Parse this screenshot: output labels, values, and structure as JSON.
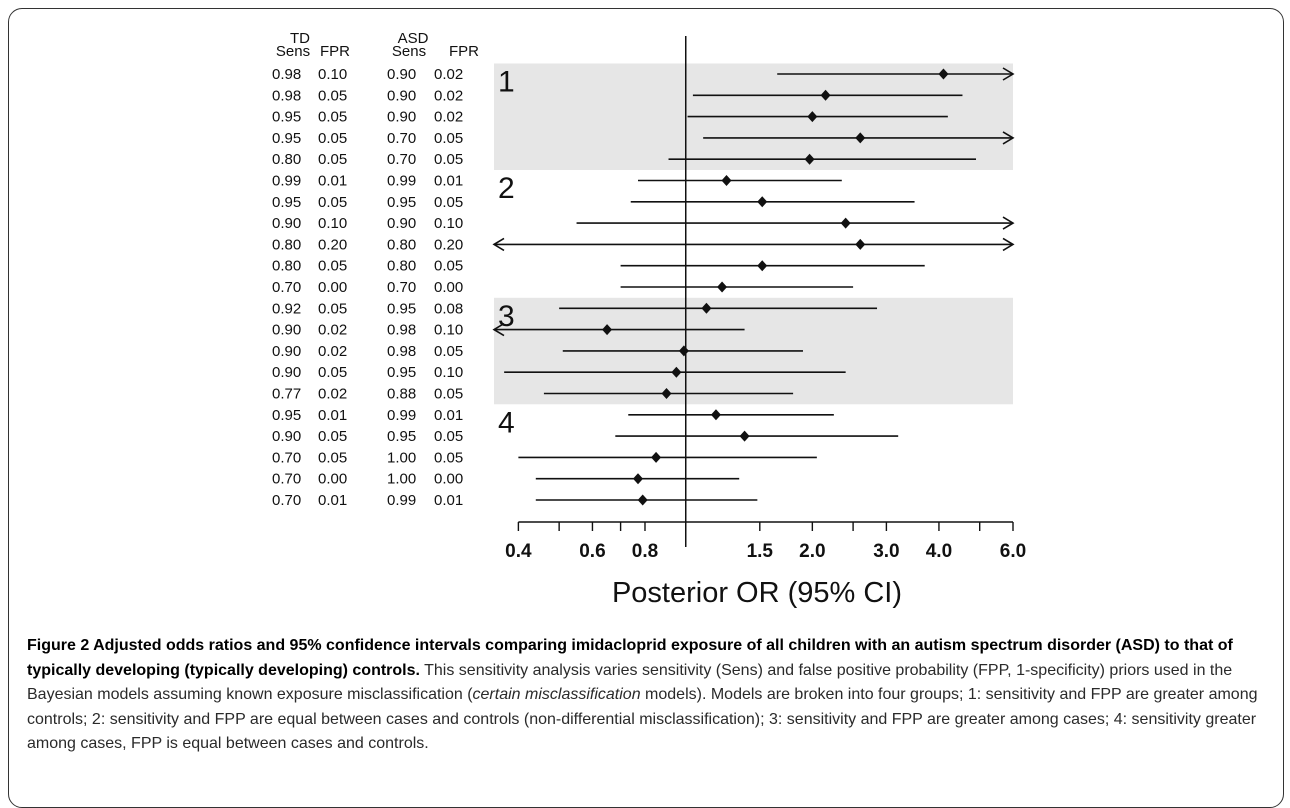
{
  "chart_data": {
    "type": "forest",
    "column_headers": {
      "td_group": "TD",
      "asd_group": "ASD",
      "td_sens": "Sens",
      "td_fpr": "FPR",
      "asd_sens": "Sens",
      "asd_fpr": "FPR"
    },
    "groups": [
      {
        "label": "1",
        "rows": [
          0,
          4
        ],
        "shaded": true
      },
      {
        "label": "2",
        "rows": [
          5,
          10
        ],
        "shaded": false
      },
      {
        "label": "3",
        "rows": [
          11,
          15
        ],
        "shaded": true
      },
      {
        "label": "4",
        "rows": [
          16,
          20
        ],
        "shaded": false
      }
    ],
    "rows": [
      {
        "td_sens": "0.98",
        "td_fpr": "0.10",
        "asd_sens": "0.90",
        "asd_fpr": "0.02",
        "or": 4.1,
        "lo": 1.65,
        "hi": 6.0,
        "arrow_left": false,
        "arrow_right": true
      },
      {
        "td_sens": "0.98",
        "td_fpr": "0.05",
        "asd_sens": "0.90",
        "asd_fpr": "0.02",
        "or": 2.15,
        "lo": 1.04,
        "hi": 4.55,
        "arrow_left": false,
        "arrow_right": false
      },
      {
        "td_sens": "0.95",
        "td_fpr": "0.05",
        "asd_sens": "0.90",
        "asd_fpr": "0.02",
        "or": 2.0,
        "lo": 1.01,
        "hi": 4.2,
        "arrow_left": false,
        "arrow_right": false
      },
      {
        "td_sens": "0.95",
        "td_fpr": "0.05",
        "asd_sens": "0.70",
        "asd_fpr": "0.05",
        "or": 2.6,
        "lo": 1.1,
        "hi": 6.0,
        "arrow_left": false,
        "arrow_right": true
      },
      {
        "td_sens": "0.80",
        "td_fpr": "0.05",
        "asd_sens": "0.70",
        "asd_fpr": "0.05",
        "or": 1.97,
        "lo": 0.91,
        "hi": 4.9,
        "arrow_left": false,
        "arrow_right": false
      },
      {
        "td_sens": "0.99",
        "td_fpr": "0.01",
        "asd_sens": "0.99",
        "asd_fpr": "0.01",
        "or": 1.25,
        "lo": 0.77,
        "hi": 2.35,
        "arrow_left": false,
        "arrow_right": false
      },
      {
        "td_sens": "0.95",
        "td_fpr": "0.05",
        "asd_sens": "0.95",
        "asd_fpr": "0.05",
        "or": 1.52,
        "lo": 0.74,
        "hi": 3.5,
        "arrow_left": false,
        "arrow_right": false
      },
      {
        "td_sens": "0.90",
        "td_fpr": "0.10",
        "asd_sens": "0.90",
        "asd_fpr": "0.10",
        "or": 2.4,
        "lo": 0.55,
        "hi": 6.0,
        "arrow_left": false,
        "arrow_right": true
      },
      {
        "td_sens": "0.80",
        "td_fpr": "0.20",
        "asd_sens": "0.80",
        "asd_fpr": "0.20",
        "or": 2.6,
        "lo": 0.35,
        "hi": 6.0,
        "arrow_left": true,
        "arrow_right": true
      },
      {
        "td_sens": "0.80",
        "td_fpr": "0.05",
        "asd_sens": "0.80",
        "asd_fpr": "0.05",
        "or": 1.52,
        "lo": 0.7,
        "hi": 3.7,
        "arrow_left": false,
        "arrow_right": false
      },
      {
        "td_sens": "0.70",
        "td_fpr": "0.00",
        "asd_sens": "0.70",
        "asd_fpr": "0.00",
        "or": 1.22,
        "lo": 0.7,
        "hi": 2.5,
        "arrow_left": false,
        "arrow_right": false
      },
      {
        "td_sens": "0.92",
        "td_fpr": "0.05",
        "asd_sens": "0.95",
        "asd_fpr": "0.08",
        "or": 1.12,
        "lo": 0.5,
        "hi": 2.85,
        "arrow_left": false,
        "arrow_right": false
      },
      {
        "td_sens": "0.90",
        "td_fpr": "0.02",
        "asd_sens": "0.98",
        "asd_fpr": "0.10",
        "or": 0.65,
        "lo": 0.35,
        "hi": 1.38,
        "arrow_left": true,
        "arrow_right": false
      },
      {
        "td_sens": "0.90",
        "td_fpr": "0.02",
        "asd_sens": "0.98",
        "asd_fpr": "0.05",
        "or": 0.99,
        "lo": 0.51,
        "hi": 1.9,
        "arrow_left": false,
        "arrow_right": false
      },
      {
        "td_sens": "0.90",
        "td_fpr": "0.05",
        "asd_sens": "0.95",
        "asd_fpr": "0.10",
        "or": 0.95,
        "lo": 0.37,
        "hi": 2.4,
        "arrow_left": false,
        "arrow_right": false
      },
      {
        "td_sens": "0.77",
        "td_fpr": "0.02",
        "asd_sens": "0.88",
        "asd_fpr": "0.05",
        "or": 0.9,
        "lo": 0.46,
        "hi": 1.8,
        "arrow_left": false,
        "arrow_right": false
      },
      {
        "td_sens": "0.95",
        "td_fpr": "0.01",
        "asd_sens": "0.99",
        "asd_fpr": "0.01",
        "or": 1.18,
        "lo": 0.73,
        "hi": 2.25,
        "arrow_left": false,
        "arrow_right": false
      },
      {
        "td_sens": "0.90",
        "td_fpr": "0.05",
        "asd_sens": "0.95",
        "asd_fpr": "0.05",
        "or": 1.38,
        "lo": 0.68,
        "hi": 3.2,
        "arrow_left": false,
        "arrow_right": false
      },
      {
        "td_sens": "0.70",
        "td_fpr": "0.05",
        "asd_sens": "1.00",
        "asd_fpr": "0.05",
        "or": 0.85,
        "lo": 0.4,
        "hi": 2.05,
        "arrow_left": false,
        "arrow_right": false
      },
      {
        "td_sens": "0.70",
        "td_fpr": "0.00",
        "asd_sens": "1.00",
        "asd_fpr": "0.00",
        "or": 0.77,
        "lo": 0.44,
        "hi": 1.34,
        "arrow_left": false,
        "arrow_right": false
      },
      {
        "td_sens": "0.70",
        "td_fpr": "0.01",
        "asd_sens": "0.99",
        "asd_fpr": "0.01",
        "or": 0.79,
        "lo": 0.44,
        "hi": 1.48,
        "arrow_left": false,
        "arrow_right": false
      }
    ],
    "x_axis": {
      "scale": "log",
      "range": [
        0.35,
        6.0
      ],
      "reference_line": 1.0,
      "ticks": [
        0.4,
        0.5,
        0.6,
        0.7,
        0.8,
        1.0,
        1.5,
        2.0,
        2.5,
        3.0,
        4.0,
        5.0,
        6.0
      ],
      "tick_labels": [
        {
          "value": 0.4,
          "label": "0.4"
        },
        {
          "value": 0.6,
          "label": "0.6"
        },
        {
          "value": 0.8,
          "label": "0.8"
        },
        {
          "value": 1.5,
          "label": "1.5"
        },
        {
          "value": 2.0,
          "label": "2.0"
        },
        {
          "value": 3.0,
          "label": "3.0"
        },
        {
          "value": 4.0,
          "label": "4.0"
        },
        {
          "value": 6.0,
          "label": "6.0"
        }
      ],
      "label": "Posterior OR (95% CI)"
    },
    "colors": {
      "shade": "#e6e6e6",
      "ink": "#111111"
    }
  },
  "caption": {
    "title": "Figure 2 Adjusted odds ratios and 95% confidence intervals comparing imidacloprid exposure of all children with an autism spectrum disorder (ASD) to that of typically developing (typically developing) controls.",
    "body_1": " This sensitivity analysis varies sensitivity (Sens) and false positive probability (FPP, 1-specificity) priors used in the Bayesian models assuming known exposure misclassification (",
    "body_italic": "certain misclassification",
    "body_2": " models). Models are broken into four groups; 1: sensitivity and FPP are greater among controls; 2: sensitivity and FPP are equal between cases and controls (non-differential misclassification); 3: sensitivity and FPP are greater among cases; 4: sensitivity greater among cases, FPP is equal between cases and controls."
  }
}
